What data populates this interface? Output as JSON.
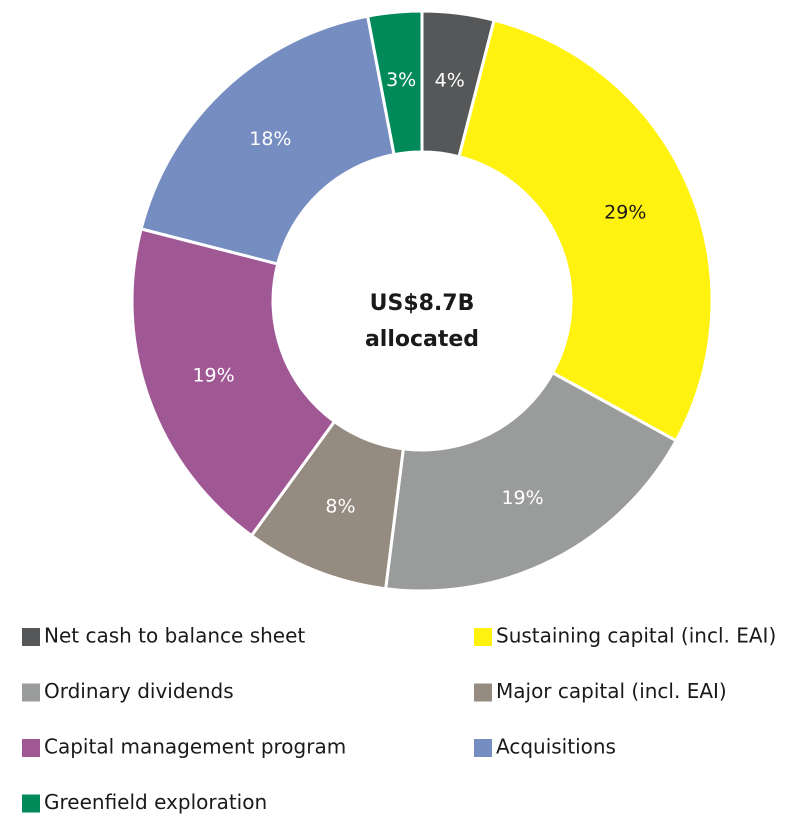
{
  "chart_data": {
    "type": "donut",
    "center_label": [
      "US$8.7B",
      "allocated"
    ],
    "categories": [
      "Net cash to balance sheet",
      "Sustaining capital (incl. EAI)",
      "Ordinary dividends",
      "Major capital (incl. EAI)",
      "Capital management program",
      "Acquisitions",
      "Greenfield exploration"
    ],
    "values": [
      4,
      29,
      19,
      8,
      19,
      18,
      3
    ],
    "value_labels": [
      "4%",
      "29%",
      "19%",
      "8%",
      "19%",
      "18%",
      "3%"
    ],
    "colors": [
      "#555759",
      "#fff20f",
      "#9a9c9b",
      "#968b80",
      "#a05895",
      "#758dc0",
      "#008a5a"
    ],
    "label_colors": [
      "#ffffff",
      "#1a1a1a",
      "#ffffff",
      "#ffffff",
      "#ffffff",
      "#ffffff",
      "#ffffff"
    ]
  }
}
